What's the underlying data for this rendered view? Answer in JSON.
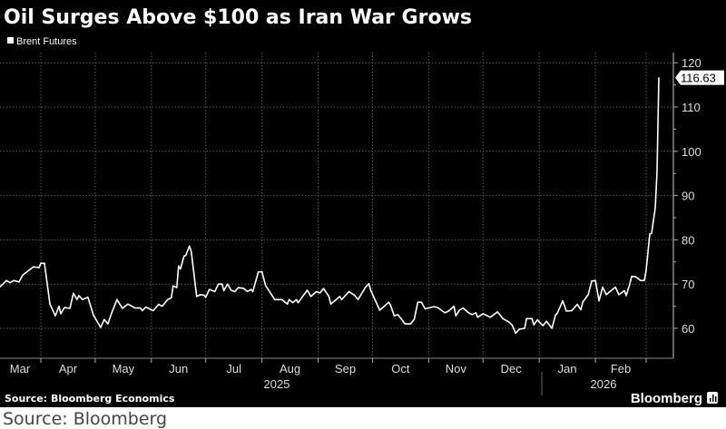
{
  "title": "Oil Surges Above $100 as Iran War Grows",
  "legend": "Brent Futures",
  "source": "Source: Bloomberg Economics",
  "brand": "Bloomberg",
  "caption": "Source: Bloomberg",
  "colors": {
    "background": "#000000",
    "line": "#ffffff",
    "grid": "#5a5a5a",
    "caption_bg": "#ffffff"
  },
  "chart_data": {
    "type": "line",
    "title": "Oil Surges Above $100 as Iran War Grows",
    "xlabel": "",
    "ylabel": "",
    "ylim": [
      56,
      122
    ],
    "yticks": [
      60,
      70,
      80,
      90,
      100,
      110,
      120
    ],
    "yaxis_position": "right",
    "grid": true,
    "legend_position": "top-left",
    "month_labels": [
      "Mar",
      "Apr",
      "May",
      "Jun",
      "Jul",
      "Aug",
      "Sep",
      "Oct",
      "Nov",
      "Dec",
      "Jan",
      "Feb"
    ],
    "year_labels": [
      "2025",
      "2026"
    ],
    "last_value_label": "116.63",
    "series": [
      {
        "name": "Brent Futures",
        "x": [
          "2025-03-09",
          "2025-03-13",
          "2025-03-15",
          "2025-03-17",
          "2025-03-20",
          "2025-03-22",
          "2025-03-25",
          "2025-03-28",
          "2025-03-31",
          "2025-04-01",
          "2025-04-03",
          "2025-04-06",
          "2025-04-09",
          "2025-04-11",
          "2025-04-12",
          "2025-04-14",
          "2025-04-17",
          "2025-04-19",
          "2025-04-21",
          "2025-04-22",
          "2025-04-24",
          "2025-04-27",
          "2025-04-30",
          "2025-05-04",
          "2025-05-06",
          "2025-05-08",
          "2025-05-10",
          "2025-05-13",
          "2025-05-16",
          "2025-05-19",
          "2025-05-23",
          "2025-05-26",
          "2025-05-27",
          "2025-05-29",
          "2025-06-02",
          "2025-06-05",
          "2025-06-07",
          "2025-06-10",
          "2025-06-12",
          "2025-06-13",
          "2025-06-15",
          "2025-06-16",
          "2025-06-17",
          "2025-06-19",
          "2025-06-20",
          "2025-06-22",
          "2025-06-23",
          "2025-06-26",
          "2025-06-28",
          "2025-06-30",
          "2025-07-01",
          "2025-07-03",
          "2025-07-06",
          "2025-07-08",
          "2025-07-10",
          "2025-07-11",
          "2025-07-13",
          "2025-07-15",
          "2025-07-17",
          "2025-07-19",
          "2025-07-22",
          "2025-07-24",
          "2025-07-26",
          "2025-07-27",
          "2025-07-30",
          "2025-08-01",
          "2025-08-03",
          "2025-08-07",
          "2025-08-08",
          "2025-08-12",
          "2025-08-15",
          "2025-08-16",
          "2025-08-18",
          "2025-08-20",
          "2025-08-21",
          "2025-08-24",
          "2025-08-26",
          "2025-08-28",
          "2025-08-31",
          "2025-09-02",
          "2025-09-04",
          "2025-09-07",
          "2025-09-08",
          "2025-09-13",
          "2025-09-14",
          "2025-09-18",
          "2025-09-21",
          "2025-09-23",
          "2025-09-27",
          "2025-09-29",
          "2025-09-30",
          "2025-10-05",
          "2025-10-07",
          "2025-10-10",
          "2025-10-11",
          "2025-10-13",
          "2025-10-15",
          "2025-10-19",
          "2025-10-22",
          "2025-10-24",
          "2025-10-26",
          "2025-10-28",
          "2025-10-30",
          "2025-11-04",
          "2025-11-06",
          "2025-11-10",
          "2025-11-12",
          "2025-11-15",
          "2025-11-16",
          "2025-11-18",
          "2025-11-20",
          "2025-11-23",
          "2025-11-25",
          "2025-11-27",
          "2025-11-28",
          "2025-12-01",
          "2025-12-05",
          "2025-12-09",
          "2025-12-12",
          "2025-12-15",
          "2025-12-17",
          "2025-12-19",
          "2025-12-21",
          "2025-12-24",
          "2025-12-25",
          "2025-12-28",
          "2025-12-29",
          "2025-12-31",
          "2026-01-03",
          "2026-01-05",
          "2026-01-08",
          "2026-01-10",
          "2026-01-11",
          "2026-01-14",
          "2026-01-16",
          "2026-01-19",
          "2026-01-22",
          "2026-01-24",
          "2026-01-25",
          "2026-01-28",
          "2026-01-30",
          "2026-02-01",
          "2026-02-03",
          "2026-02-05",
          "2026-02-07",
          "2026-02-09",
          "2026-02-12",
          "2026-02-14",
          "2026-02-17",
          "2026-02-18",
          "2026-02-20",
          "2026-02-21",
          "2026-02-23",
          "2026-02-26",
          "2026-02-28",
          "2026-03-01",
          "2026-03-03",
          "2026-03-04",
          "2026-03-06",
          "2026-03-07",
          "2026-03-08"
        ],
        "y": [
          69.2,
          70.8,
          70.3,
          70.8,
          70.5,
          72.0,
          73.0,
          73.9,
          73.7,
          74.7,
          74.7,
          65.5,
          62.8,
          65.0,
          63.3,
          64.7,
          64.5,
          67.9,
          66.5,
          67.4,
          66.5,
          67.0,
          63.0,
          60.2,
          62.0,
          61.0,
          63.4,
          66.5,
          64.5,
          65.5,
          64.6,
          64.6,
          64.0,
          64.8,
          64.0,
          65.4,
          65.0,
          66.5,
          66.9,
          69.6,
          69.2,
          74.1,
          73.4,
          76.3,
          76.5,
          78.6,
          77.3,
          67.2,
          67.6,
          67.5,
          67.0,
          68.8,
          68.3,
          70.0,
          70.0,
          68.5,
          70.0,
          68.6,
          68.3,
          69.2,
          69.0,
          68.3,
          68.8,
          68.3,
          72.7,
          72.8,
          69.7,
          67.2,
          66.5,
          66.5,
          65.5,
          66.5,
          65.8,
          66.5,
          65.8,
          67.5,
          68.6,
          67.2,
          68.3,
          68.0,
          69.0,
          67.2,
          65.5,
          67.2,
          66.5,
          68.3,
          67.5,
          66.5,
          69.2,
          70.1,
          68.6,
          64.1,
          64.8,
          65.9,
          65.2,
          62.8,
          63.1,
          61.0,
          61.0,
          62.0,
          65.9,
          65.9,
          64.4,
          64.9,
          64.7,
          63.5,
          63.9,
          65.0,
          62.8,
          64.1,
          64.6,
          63.5,
          63.1,
          63.5,
          62.5,
          63.3,
          62.5,
          63.7,
          62.2,
          61.5,
          60.8,
          58.9,
          59.8,
          60.0,
          62.2,
          62.2,
          60.8,
          61.9,
          60.6,
          61.6,
          60.0,
          63.0,
          63.4,
          66.2,
          63.9,
          64.0,
          65.4,
          64.2,
          65.9,
          67.6,
          70.7,
          70.8,
          66.2,
          69.3,
          67.6,
          68.3,
          69.3,
          67.6,
          68.5,
          67.4,
          70.0,
          71.7,
          71.7,
          70.8,
          70.8,
          73.1,
          81.3,
          81.5,
          87.1,
          95.3,
          116.63
        ]
      }
    ]
  }
}
